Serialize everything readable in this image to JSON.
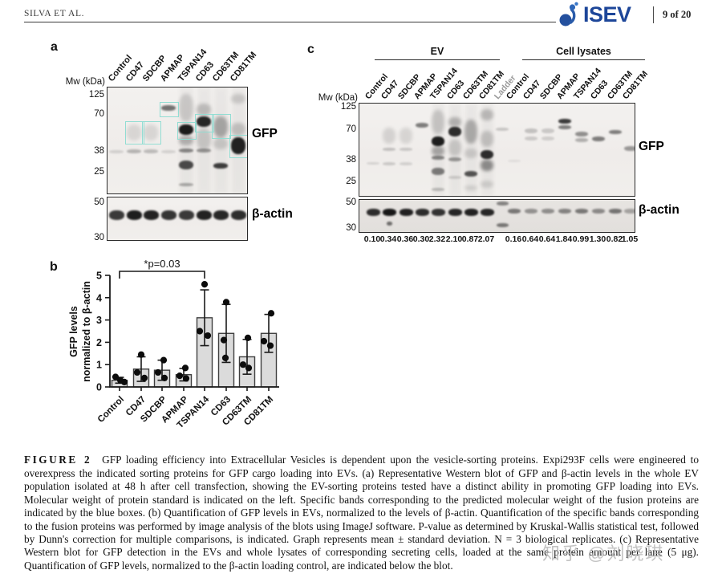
{
  "header": {
    "running_head": "SILVA ET AL.",
    "logo_text": "ISEV",
    "page_indicator": "9 of 20"
  },
  "panel_a": {
    "label": "a",
    "mw_header": "Mw (kDa)",
    "lanes": [
      "Control",
      "CD47",
      "SDCBP",
      "APMAP",
      "TSPAN14",
      "CD63",
      "CD63TM",
      "CD81TM"
    ],
    "gfp_mw": [
      "125",
      "70",
      "38",
      "25"
    ],
    "actin_mw": [
      "50",
      "30"
    ],
    "gfp_label": "GFP",
    "actin_label": "β-actin"
  },
  "panel_b": {
    "label": "b",
    "chart_data": {
      "type": "bar",
      "categories": [
        "Control",
        "CD47",
        "SDCBP",
        "APMAP",
        "TSPAN14",
        "CD63",
        "CD63TM",
        "CD81TM"
      ],
      "values": [
        0.3,
        0.8,
        0.75,
        0.55,
        3.1,
        2.4,
        1.35,
        2.4
      ],
      "sd": [
        0.13,
        0.55,
        0.45,
        0.28,
        1.25,
        1.3,
        0.78,
        0.85
      ],
      "points": [
        [
          0.45,
          0.3,
          0.22
        ],
        [
          1.45,
          0.65,
          0.4
        ],
        [
          1.2,
          0.65,
          0.4
        ],
        [
          0.85,
          0.5,
          0.38
        ],
        [
          4.6,
          2.5,
          2.3
        ],
        [
          3.8,
          2.1,
          1.3
        ],
        [
          2.2,
          1.0,
          0.85
        ],
        [
          3.3,
          2.05,
          1.85
        ]
      ],
      "point_dx": [
        [
          -5,
          1,
          6
        ],
        [
          0,
          -5,
          4
        ],
        [
          2,
          -5,
          3
        ],
        [
          2,
          -5,
          3
        ],
        [
          0,
          -6,
          4
        ],
        [
          0,
          -3,
          -1
        ],
        [
          1,
          -5,
          2
        ],
        [
          3,
          -6,
          2
        ]
      ],
      "title": "",
      "xlabel": "",
      "ylabel_line1": "GFP levels",
      "ylabel_line2": "normalized to β-actin",
      "ylim": [
        0,
        5
      ],
      "yticks": [
        0,
        1,
        2,
        3,
        4,
        5
      ],
      "significance": {
        "from": "Control",
        "to": "TSPAN14",
        "label": "*p=0.03"
      }
    }
  },
  "panel_c": {
    "label": "c",
    "mw_header": "Mw (kDa)",
    "group_headers": [
      "EV",
      "Cell lysates"
    ],
    "ev_lanes": [
      "Control",
      "CD47",
      "SDCBP",
      "APMAP",
      "TSPAN14",
      "CD63",
      "CD63TM",
      "CD81TM"
    ],
    "ladder_lane": "Ladder",
    "lysate_lanes": [
      "Control",
      "CD47",
      "SDCBP",
      "APMAP",
      "TSPAN14",
      "CD63",
      "CD63TM",
      "CD81TM"
    ],
    "gfp_mw": [
      "125",
      "70",
      "38",
      "25"
    ],
    "actin_mw": [
      "50",
      "30"
    ],
    "gfp_label": "GFP",
    "actin_label": "β-actin",
    "ev_values": [
      "0.10",
      "0.34",
      "0.36",
      "0.30",
      "2.32",
      "2.10",
      "0.87",
      "2.07"
    ],
    "lysate_values": [
      "0.16",
      "0.64",
      "0.64",
      "1.84",
      "0.99",
      "1.30",
      "0.82",
      "1.05"
    ]
  },
  "caption": {
    "label": "FIGURE 2",
    "text": "GFP loading efficiency into Extracellular Vesicles is dependent upon the vesicle-sorting proteins. Expi293F cells were engineered to overexpress the indicated sorting proteins for GFP cargo loading into EVs. (a) Representative Western blot of GFP and β-actin levels in the whole EV population isolated at 48 h after cell transfection, showing the EV-sorting proteins tested have a distinct ability in promoting GFP loading into EVs. Molecular weight of protein standard is indicated on the left. Specific bands corresponding to the predicted molecular weight of the fusion proteins are indicated by the blue boxes. (b) Quantification of GFP levels in EVs, normalized to the levels of β-actin. Quantification of the specific bands corresponding to the fusion proteins was performed by image analysis of the blots using ImageJ software. P-value as determined by Kruskal-Wallis statistical test, followed by Dunn's correction for multiple comparisons, is indicated. Graph represents mean ± standard deviation. N = 3 biological replicates. (c) Representative Western blot for GFP detection in the EVs and whole lysates of corresponding secreting cells, loaded at the same protein amount per lane (5 μg). Quantification of GFP levels, normalized to the β-actin loading control, are indicated below the blot."
  },
  "watermark": "知乎 @刘晓琪",
  "colors": {
    "accent_blue": "#1d4699",
    "box_teal": "#92ddd3",
    "bar_fill": "#dbdbdb",
    "bar_stroke": "#3f3f3f"
  }
}
